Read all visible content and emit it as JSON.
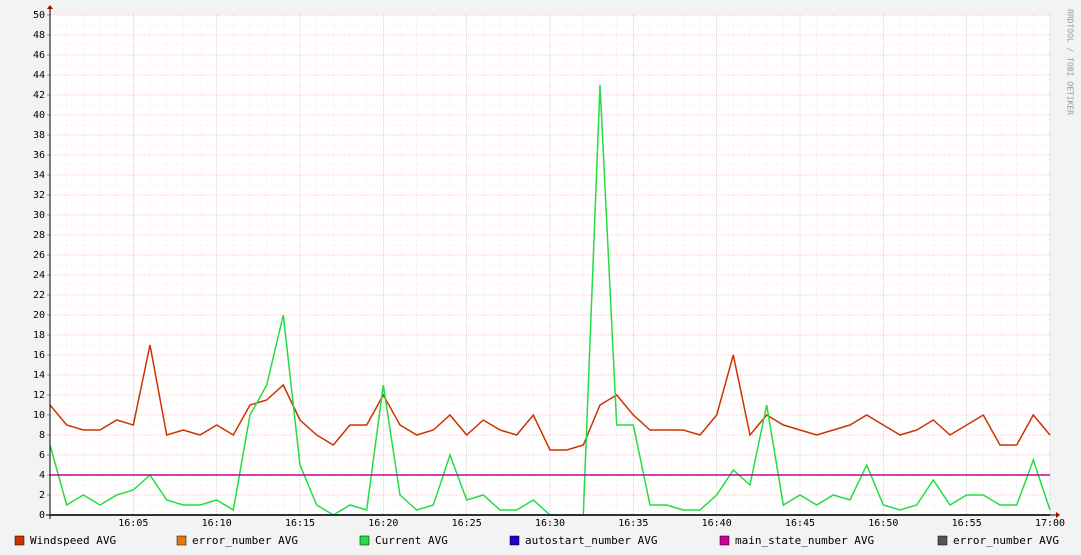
{
  "chart_data": {
    "type": "line",
    "watermark": "RRDTOOL / TOBI OETIKER",
    "x": [
      null,
      null,
      null,
      null,
      null,
      "16:05",
      null,
      null,
      null,
      null,
      "16:10",
      null,
      null,
      null,
      null,
      "16:15",
      null,
      null,
      null,
      null,
      "16:20",
      null,
      null,
      null,
      null,
      "16:25",
      null,
      null,
      null,
      null,
      "16:30",
      null,
      null,
      null,
      null,
      "16:35",
      null,
      null,
      null,
      null,
      "16:40",
      null,
      null,
      null,
      null,
      "16:45",
      null,
      null,
      null,
      null,
      "16:50",
      null,
      null,
      null,
      null,
      "16:55",
      null,
      null,
      null,
      null,
      "17:00"
    ],
    "ylim": [
      0,
      50
    ],
    "yticks": [
      0,
      2,
      4,
      6,
      8,
      10,
      12,
      14,
      16,
      18,
      20,
      22,
      24,
      26,
      28,
      30,
      32,
      34,
      36,
      38,
      40,
      42,
      44,
      46,
      48,
      50
    ],
    "grid": true,
    "legend": "bottom",
    "series": [
      {
        "name": "Windspeed AVG",
        "color": "#cc3300",
        "values": [
          11,
          9,
          8.5,
          8.5,
          9.5,
          9,
          17,
          8,
          8.5,
          8,
          9,
          8,
          11,
          11.5,
          13,
          9.5,
          8,
          7,
          9,
          9,
          12,
          9,
          8,
          8.5,
          10,
          8,
          9.5,
          8.5,
          8,
          10,
          6.5,
          6.5,
          7,
          11,
          12,
          10,
          8.5,
          8.5,
          8.5,
          8,
          10,
          16,
          8,
          10,
          9,
          8.5,
          8,
          8.5,
          9,
          10,
          9,
          8,
          8.5,
          9.5,
          8,
          9,
          10,
          7,
          7,
          10,
          8
        ]
      },
      {
        "name": "error_number AVG",
        "color": "#e07a10",
        "values": [
          0,
          0,
          0,
          0,
          0,
          0,
          0,
          0,
          0,
          0,
          0,
          0,
          0,
          0,
          0,
          0,
          0,
          0,
          0,
          0,
          0,
          0,
          0,
          0,
          0,
          0,
          0,
          0,
          0,
          0,
          0,
          0,
          0,
          0,
          0,
          0,
          0,
          0,
          0,
          0,
          0,
          0,
          0,
          0,
          0,
          0,
          0,
          0,
          0,
          0,
          0,
          0,
          0,
          0,
          0,
          0,
          0,
          0,
          0,
          0,
          0
        ]
      },
      {
        "name": "Current AVG",
        "color": "#22dd44",
        "values": [
          7,
          1,
          2,
          1,
          2,
          2.5,
          4,
          1.5,
          1,
          1,
          1.5,
          0.5,
          10,
          13,
          20,
          5,
          1,
          0,
          1,
          0.5,
          13,
          2,
          0.5,
          1,
          6,
          1.5,
          2,
          0.5,
          0.5,
          1.5,
          0,
          0,
          0,
          43,
          9,
          9,
          1,
          1,
          0.5,
          0.5,
          2,
          4.5,
          3,
          11,
          1,
          2,
          1,
          2,
          1.5,
          5,
          1,
          0.5,
          1,
          3.5,
          1,
          2,
          2,
          1,
          1,
          5.5,
          0.5
        ]
      },
      {
        "name": "autostart_number AVG",
        "color": "#2200cc",
        "values": [
          0,
          0,
          0,
          0,
          0,
          0,
          0,
          0,
          0,
          0,
          0,
          0,
          0,
          0,
          0,
          0,
          0,
          0,
          0,
          0,
          0,
          0,
          0,
          0,
          0,
          0,
          0,
          0,
          0,
          0,
          0,
          0,
          0,
          0,
          0,
          0,
          0,
          0,
          0,
          0,
          0,
          0,
          0,
          0,
          0,
          0,
          0,
          0,
          0,
          0,
          0,
          0,
          0,
          0,
          0,
          0,
          0,
          0,
          0,
          0,
          0
        ]
      },
      {
        "name": "main_state_number AVG",
        "color": "#cc0099",
        "values": [
          4,
          4,
          4,
          4,
          4,
          4,
          4,
          4,
          4,
          4,
          4,
          4,
          4,
          4,
          4,
          4,
          4,
          4,
          4,
          4,
          4,
          4,
          4,
          4,
          4,
          4,
          4,
          4,
          4,
          4,
          4,
          4,
          4,
          4,
          4,
          4,
          4,
          4,
          4,
          4,
          4,
          4,
          4,
          4,
          4,
          4,
          4,
          4,
          4,
          4,
          4,
          4,
          4,
          4,
          4,
          4,
          4,
          4,
          4,
          4,
          4
        ]
      },
      {
        "name": "error_number AVG",
        "color": "#555555",
        "values": [
          0,
          0,
          0,
          0,
          0,
          0,
          0,
          0,
          0,
          0,
          0,
          0,
          0,
          0,
          0,
          0,
          0,
          0,
          0,
          0,
          0,
          0,
          0,
          0,
          0,
          0,
          0,
          0,
          0,
          0,
          0,
          0,
          0,
          0,
          0,
          0,
          0,
          0,
          0,
          0,
          0,
          0,
          0,
          0,
          0,
          0,
          0,
          0,
          0,
          0,
          0,
          0,
          0,
          0,
          0,
          0,
          0,
          0,
          0,
          0,
          0
        ]
      }
    ]
  }
}
